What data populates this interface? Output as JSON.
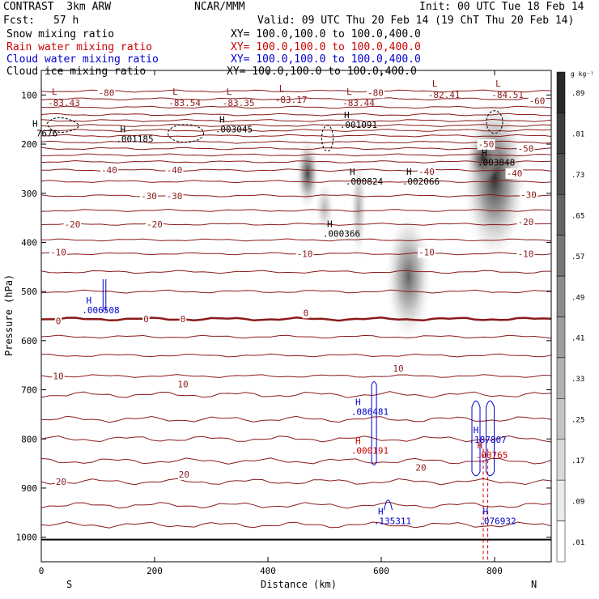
{
  "header": {
    "title": "CONTRAST  3km ARW",
    "center": "NCAR/MMM",
    "init": "Init: 00 UTC Tue 18 Feb 14",
    "fcst_label": "Fcst:",
    "fcst_value": "57 h",
    "valid": "Valid: 09 UTC Thu 20 Feb 14 (19 ChT Thu 20 Feb 14)"
  },
  "fields": [
    {
      "name": "Snow mixing ratio",
      "xy": "XY= 100.0,100.0 to 100.0,400.0",
      "color": "#000000"
    },
    {
      "name": "Rain water mixing ratio",
      "xy": "XY= 100.0,100.0 to 100.0,400.0",
      "color": "#cc0000"
    },
    {
      "name": "Cloud water mixing ratio",
      "xy": "XY= 100.0,100.0 to 100.0,400.0",
      "color": "#0000cc"
    },
    {
      "name": "Cloud ice mixing ratio",
      "xy": "XY= 100.0,100.0 to 100.0,400.0",
      "color": "#000000"
    }
  ],
  "chart_data": {
    "type": "contour",
    "xlabel": "Distance (km)",
    "ylabel": "Pressure (hPa)",
    "x_ticks": [
      0,
      200,
      400,
      600,
      800
    ],
    "y_ticks": [
      100,
      200,
      300,
      400,
      500,
      600,
      700,
      800,
      900,
      1000
    ],
    "xlim": [
      0,
      900
    ],
    "ylim": [
      1050,
      50
    ],
    "x_left_label": "S",
    "x_right_label": "N",
    "colorbar": {
      "unit": "g kg⁻¹",
      "ticks": [
        ".89",
        ".81",
        ".73",
        ".65",
        ".57",
        ".49",
        ".41",
        ".33",
        ".25",
        ".17",
        ".09",
        ".01"
      ]
    },
    "colors": {
      "temperature": "#8b1a1a",
      "rain": "#cc0000",
      "cloud_water": "#0000cc",
      "snow": "#000000"
    },
    "temperature_contour_labels": [
      {
        "text": "-80",
        "x": 115,
        "p": 95
      },
      {
        "text": "-80",
        "x": 590,
        "p": 95
      },
      {
        "text": "-60",
        "x": 875,
        "p": 112
      },
      {
        "text": "-50",
        "x": 785,
        "p": 200
      },
      {
        "text": "-50",
        "x": 855,
        "p": 209
      },
      {
        "text": "-40",
        "x": 120,
        "p": 253
      },
      {
        "text": "-40",
        "x": 235,
        "p": 253
      },
      {
        "text": "-40",
        "x": 680,
        "p": 256
      },
      {
        "text": "-40",
        "x": 835,
        "p": 259
      },
      {
        "text": "-30",
        "x": 190,
        "p": 305
      },
      {
        "text": "-30",
        "x": 235,
        "p": 305
      },
      {
        "text": "-30",
        "x": 860,
        "p": 303
      },
      {
        "text": "-20",
        "x": 55,
        "p": 363
      },
      {
        "text": "-20",
        "x": 200,
        "p": 363
      },
      {
        "text": "-20",
        "x": 855,
        "p": 358
      },
      {
        "text": "-10",
        "x": 30,
        "p": 420
      },
      {
        "text": "-10",
        "x": 465,
        "p": 423
      },
      {
        "text": "-10",
        "x": 680,
        "p": 420
      },
      {
        "text": "-10",
        "x": 855,
        "p": 423
      },
      {
        "text": "0",
        "x": 30,
        "p": 560
      },
      {
        "text": "0",
        "x": 185,
        "p": 556
      },
      {
        "text": "0",
        "x": 250,
        "p": 556
      },
      {
        "text": "0",
        "x": 467,
        "p": 543
      },
      {
        "text": "10",
        "x": 30,
        "p": 672
      },
      {
        "text": "10",
        "x": 250,
        "p": 688
      },
      {
        "text": "10",
        "x": 630,
        "p": 656
      },
      {
        "text": "20",
        "x": 35,
        "p": 887
      },
      {
        "text": "20",
        "x": 252,
        "p": 872
      },
      {
        "text": "20",
        "x": 670,
        "p": 858
      }
    ],
    "minima": [
      {
        "text": "-83.43",
        "x": 40,
        "p": 103
      },
      {
        "text": "-83.54",
        "x": 253,
        "p": 103
      },
      {
        "text": "-83.35",
        "x": 348,
        "p": 103
      },
      {
        "text": "-83.17",
        "x": 441,
        "p": 96
      },
      {
        "text": "-83.44",
        "x": 560,
        "p": 103
      },
      {
        "text": "-82.41",
        "x": 711,
        "p": 86
      },
      {
        "text": "-84.51",
        "x": 823,
        "p": 86
      }
    ],
    "maxima_snow_ice": [
      {
        "text": ".003045",
        "x": 340,
        "p": 163
      },
      {
        "text": ".001091",
        "x": 560,
        "p": 154
      },
      {
        "text": ".001185",
        "x": 165,
        "p": 183
      },
      {
        "text": ".003848",
        "x": 803,
        "p": 230
      },
      {
        "text": ".000824",
        "x": 570,
        "p": 269
      },
      {
        "text": ".002066",
        "x": 670,
        "p": 269
      },
      {
        "text": ".000366",
        "x": 530,
        "p": 375
      },
      {
        "text": "7676",
        "x": 10,
        "p": 171
      }
    ],
    "maxima_cloud_water": [
      {
        "text": ".006508",
        "x": 105,
        "p": 531
      },
      {
        "text": ".086481",
        "x": 580,
        "p": 738
      },
      {
        "text": ".187807",
        "x": 788,
        "p": 795
      },
      {
        "text": ".135311",
        "x": 620,
        "p": 960
      },
      {
        "text": ".076932",
        "x": 805,
        "p": 960
      }
    ],
    "maxima_rain": [
      {
        "text": ".000191",
        "x": 580,
        "p": 817
      },
      {
        "text": ".00765",
        "x": 795,
        "p": 826
      }
    ]
  }
}
